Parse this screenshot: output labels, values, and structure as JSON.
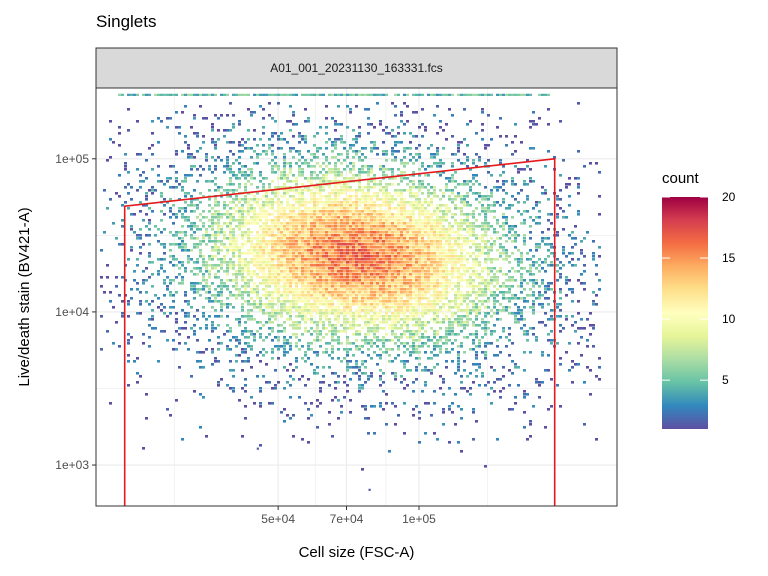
{
  "chart_data": {
    "type": "heatmap",
    "title": "Singlets",
    "panel": "A01_001_20231130_163331.fcs",
    "xlabel": "Cell size (FSC-A)",
    "ylabel": "Live/death stain (BV421-A)",
    "x_scale": "log",
    "y_scale": "log",
    "xlim": [
      20400,
      265000
    ],
    "ylim": [
      540,
      290000
    ],
    "x_ticks": [
      {
        "value": 50000,
        "label": "5e+04"
      },
      {
        "value": 70000,
        "label": "7e+04"
      },
      {
        "value": 100000,
        "label": "1e+05"
      }
    ],
    "y_ticks": [
      {
        "value": 1000,
        "label": "1e+03"
      },
      {
        "value": 10000,
        "label": "1e+04"
      },
      {
        "value": 100000,
        "label": "1e+05"
      }
    ],
    "density": {
      "center_x": 73000,
      "center_y": 24000,
      "max_count": 20,
      "saturated_row_y": 262000
    },
    "gate": {
      "color": "#E41A1C",
      "vertices": [
        [
          23500,
          540
        ],
        [
          23500,
          49000
        ],
        [
          195000,
          100000
        ],
        [
          195000,
          540
        ]
      ]
    },
    "legend": {
      "title": "count",
      "labels": [
        {
          "value": 20,
          "label": "20"
        },
        {
          "value": 15,
          "label": "15"
        },
        {
          "value": 10,
          "label": "10"
        },
        {
          "value": 5,
          "label": "5"
        }
      ],
      "range": [
        1,
        20
      ],
      "colors": [
        "#5E4FA2",
        "#3288BD",
        "#66C2A5",
        "#ABDDA4",
        "#E6F598",
        "#FFFFBF",
        "#FEE08B",
        "#FDAE61",
        "#F46D43",
        "#D53E4F",
        "#9E0142"
      ]
    },
    "grid": true
  }
}
